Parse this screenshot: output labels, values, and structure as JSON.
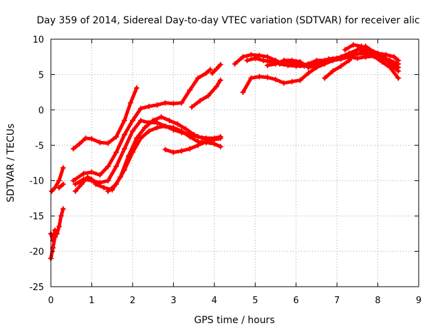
{
  "chart_data": {
    "type": "scatter",
    "title": "Day 359 of 2014, Sidereal Day-to-day VTEC variation (SDTVAR) for receiver alic",
    "xlabel": "GPS time / hours",
    "ylabel": "SDTVAR / TECUs",
    "xlim": [
      0,
      9
    ],
    "ylim": [
      -25,
      10
    ],
    "xticks": [
      0,
      1,
      2,
      3,
      4,
      5,
      6,
      7,
      8,
      9
    ],
    "yticks": [
      -25,
      -20,
      -15,
      -10,
      -5,
      0,
      5,
      10
    ],
    "grid": true,
    "legend": "none",
    "marker": "plus",
    "color": "#ff0000",
    "series": [
      {
        "values": [
          [
            0.02,
            -11.5
          ],
          [
            0.1,
            -11.0
          ],
          [
            0.2,
            -10.0
          ],
          [
            0.3,
            -8.2
          ]
        ]
      },
      {
        "values": [
          [
            0.0,
            -21.0
          ],
          [
            0.05,
            -19.5
          ],
          [
            0.1,
            -18.0
          ],
          [
            0.15,
            -17.5
          ],
          [
            0.2,
            -16.5
          ],
          [
            0.25,
            -15.0
          ],
          [
            0.3,
            -14.0
          ]
        ]
      },
      {
        "values": [
          [
            0.0,
            -17.5
          ],
          [
            0.05,
            -18.5
          ],
          [
            0.1,
            -17.0
          ]
        ]
      },
      {
        "values": [
          [
            0.2,
            -11.0
          ],
          [
            0.3,
            -10.5
          ]
        ]
      },
      {
        "values": [
          [
            0.55,
            -5.5
          ],
          [
            0.7,
            -4.8
          ],
          [
            0.85,
            -4.0
          ],
          [
            1.0,
            -4.1
          ],
          [
            1.2,
            -4.6
          ],
          [
            1.4,
            -4.7
          ],
          [
            1.6,
            -3.8
          ],
          [
            1.8,
            -1.5
          ],
          [
            1.95,
            1.0
          ],
          [
            2.1,
            3.1
          ]
        ]
      },
      {
        "values": [
          [
            0.55,
            -10.0
          ],
          [
            0.8,
            -9.0
          ],
          [
            1.0,
            -8.8
          ],
          [
            1.2,
            -9.2
          ],
          [
            1.4,
            -8.0
          ],
          [
            1.6,
            -6.0
          ],
          [
            1.8,
            -3.5
          ],
          [
            2.0,
            -1.5
          ],
          [
            2.2,
            0.2
          ],
          [
            2.4,
            0.5
          ],
          [
            2.6,
            0.7
          ],
          [
            2.8,
            1.0
          ],
          [
            3.0,
            0.9
          ],
          [
            3.2,
            1.0
          ],
          [
            3.4,
            2.8
          ],
          [
            3.6,
            4.5
          ],
          [
            3.8,
            5.2
          ],
          [
            3.9,
            5.7
          ]
        ]
      },
      {
        "values": [
          [
            0.6,
            -11.5
          ],
          [
            0.75,
            -10.5
          ],
          [
            0.9,
            -9.5
          ],
          [
            1.0,
            -9.8
          ],
          [
            1.1,
            -10.5
          ],
          [
            1.3,
            -11.0
          ],
          [
            1.5,
            -11.3
          ],
          [
            1.7,
            -9.5
          ],
          [
            1.9,
            -6.5
          ],
          [
            2.1,
            -4.0
          ],
          [
            2.3,
            -2.5
          ],
          [
            2.5,
            -1.5
          ],
          [
            2.7,
            -1.0
          ],
          [
            2.9,
            -1.5
          ],
          [
            3.1,
            -2.0
          ],
          [
            3.3,
            -2.7
          ],
          [
            3.5,
            -3.5
          ],
          [
            3.7,
            -4.0
          ],
          [
            3.9,
            -4.3
          ],
          [
            4.1,
            -4.0
          ]
        ]
      },
      {
        "values": [
          [
            0.6,
            -10.5
          ],
          [
            0.8,
            -9.8
          ],
          [
            1.0,
            -10.0
          ],
          [
            1.2,
            -10.3
          ],
          [
            1.4,
            -10.0
          ],
          [
            1.6,
            -8.0
          ],
          [
            1.8,
            -5.5
          ],
          [
            2.0,
            -3.0
          ],
          [
            2.2,
            -1.5
          ],
          [
            2.4,
            -1.8
          ],
          [
            2.6,
            -1.8
          ],
          [
            2.8,
            -2.3
          ],
          [
            3.0,
            -2.5
          ],
          [
            3.2,
            -3.0
          ],
          [
            3.4,
            -3.8
          ],
          [
            3.6,
            -4.5
          ],
          [
            3.8,
            -4.6
          ],
          [
            4.0,
            -4.8
          ],
          [
            4.15,
            -5.2
          ]
        ]
      },
      {
        "values": [
          [
            1.4,
            -11.5
          ],
          [
            1.6,
            -10.5
          ],
          [
            1.8,
            -8.5
          ],
          [
            2.0,
            -6.0
          ],
          [
            2.2,
            -4.0
          ],
          [
            2.4,
            -3.0
          ],
          [
            2.6,
            -2.5
          ],
          [
            2.8,
            -2.3
          ],
          [
            3.0,
            -2.8
          ],
          [
            3.2,
            -3.2
          ],
          [
            3.4,
            -3.5
          ],
          [
            3.6,
            -3.8
          ],
          [
            3.8,
            -4.0
          ],
          [
            4.0,
            -4.0
          ],
          [
            4.15,
            -3.8
          ]
        ]
      },
      {
        "values": [
          [
            2.8,
            -5.6
          ],
          [
            3.0,
            -6.0
          ],
          [
            3.2,
            -5.8
          ],
          [
            3.4,
            -5.5
          ],
          [
            3.6,
            -5.0
          ],
          [
            3.8,
            -4.5
          ],
          [
            4.0,
            -4.2
          ],
          [
            4.15,
            -4.0
          ]
        ]
      },
      {
        "values": [
          [
            3.45,
            0.4
          ],
          [
            3.65,
            1.3
          ],
          [
            3.85,
            2.0
          ],
          [
            4.05,
            3.3
          ],
          [
            4.15,
            4.2
          ]
        ]
      },
      {
        "values": [
          [
            3.95,
            5.2
          ],
          [
            4.05,
            5.8
          ],
          [
            4.15,
            6.4
          ]
        ]
      },
      {
        "values": [
          [
            4.5,
            6.5
          ],
          [
            4.7,
            7.5
          ],
          [
            4.9,
            7.8
          ],
          [
            5.1,
            7.7
          ],
          [
            5.3,
            7.5
          ],
          [
            5.5,
            7.0
          ],
          [
            5.7,
            6.5
          ],
          [
            5.9,
            6.7
          ],
          [
            6.1,
            6.3
          ],
          [
            6.3,
            6.5
          ],
          [
            6.5,
            7.0
          ],
          [
            6.7,
            7.0
          ],
          [
            6.9,
            7.2
          ],
          [
            7.1,
            7.5
          ],
          [
            7.3,
            8.0
          ],
          [
            7.5,
            8.5
          ],
          [
            7.7,
            8.3
          ],
          [
            7.9,
            8.0
          ],
          [
            8.1,
            7.5
          ],
          [
            8.3,
            7.0
          ],
          [
            8.5,
            6.5
          ]
        ]
      },
      {
        "values": [
          [
            4.8,
            7.0
          ],
          [
            5.0,
            7.3
          ],
          [
            5.2,
            7.0
          ],
          [
            5.4,
            6.8
          ],
          [
            5.6,
            6.5
          ],
          [
            5.8,
            6.3
          ],
          [
            6.0,
            6.2
          ],
          [
            6.2,
            6.2
          ],
          [
            6.4,
            6.4
          ],
          [
            6.6,
            6.8
          ],
          [
            6.8,
            7.2
          ],
          [
            7.0,
            7.3
          ],
          [
            7.2,
            7.5
          ],
          [
            7.4,
            7.8
          ],
          [
            7.6,
            8.0
          ],
          [
            7.8,
            7.8
          ],
          [
            8.0,
            7.5
          ],
          [
            8.2,
            7.0
          ],
          [
            8.4,
            6.5
          ],
          [
            8.5,
            6.0
          ]
        ]
      },
      {
        "values": [
          [
            4.7,
            2.5
          ],
          [
            4.9,
            4.5
          ],
          [
            5.1,
            4.7
          ],
          [
            5.3,
            4.6
          ],
          [
            5.5,
            4.3
          ],
          [
            5.7,
            3.8
          ],
          [
            5.9,
            4.0
          ],
          [
            6.1,
            4.2
          ],
          [
            6.3,
            5.2
          ],
          [
            6.5,
            6.0
          ],
          [
            6.7,
            6.5
          ],
          [
            6.9,
            7.0
          ],
          [
            7.1,
            7.2
          ],
          [
            7.3,
            7.5
          ],
          [
            7.5,
            7.3
          ],
          [
            7.7,
            7.5
          ],
          [
            7.9,
            7.6
          ],
          [
            8.1,
            6.8
          ],
          [
            8.3,
            6.0
          ],
          [
            8.5,
            4.5
          ]
        ]
      },
      {
        "values": [
          [
            6.7,
            4.5
          ],
          [
            6.9,
            5.5
          ],
          [
            7.1,
            6.2
          ],
          [
            7.3,
            7.0
          ],
          [
            7.5,
            8.5
          ],
          [
            7.7,
            9.0
          ],
          [
            7.9,
            8.2
          ],
          [
            8.1,
            7.8
          ],
          [
            8.3,
            6.5
          ],
          [
            8.5,
            5.5
          ]
        ]
      },
      {
        "values": [
          [
            7.2,
            8.5
          ],
          [
            7.4,
            9.2
          ],
          [
            7.6,
            9.0
          ],
          [
            7.8,
            8.5
          ],
          [
            8.0,
            8.0
          ],
          [
            8.2,
            7.8
          ],
          [
            8.4,
            7.5
          ],
          [
            8.5,
            7.0
          ]
        ]
      },
      {
        "values": [
          [
            5.3,
            6.3
          ],
          [
            5.5,
            6.5
          ],
          [
            5.7,
            7.0
          ],
          [
            5.9,
            7.0
          ],
          [
            6.1,
            6.8
          ],
          [
            6.3,
            6.0
          ],
          [
            6.5,
            6.3
          ],
          [
            6.7,
            6.8
          ],
          [
            6.9,
            7.0
          ]
        ]
      }
    ]
  }
}
